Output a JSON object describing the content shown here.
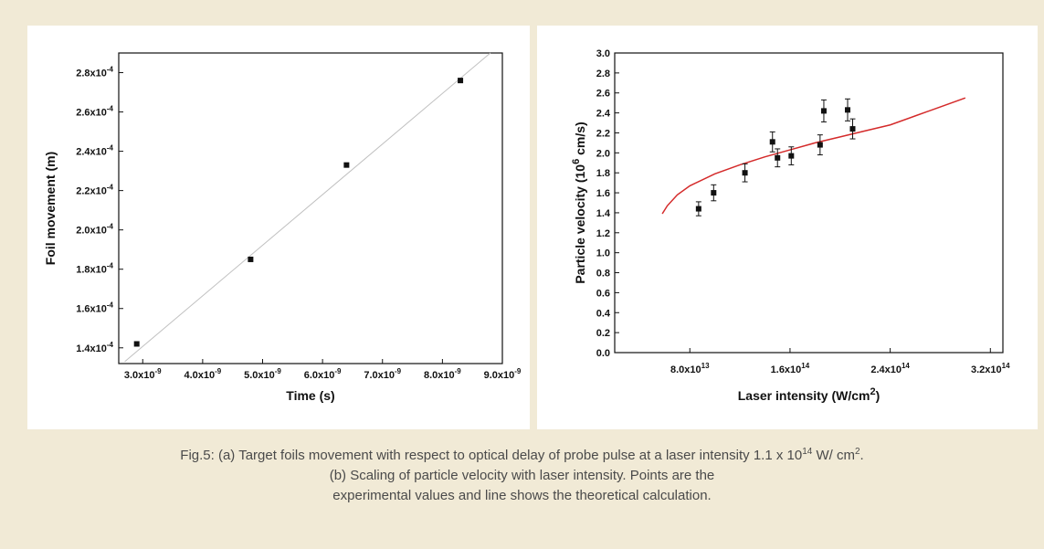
{
  "colors": {
    "background": "#f1ead6",
    "panel": "#ffffff",
    "fit_line": "#c0c0c0",
    "theory_line": "#d42a2a",
    "points": "#111111"
  },
  "chart_data": [
    {
      "type": "scatter",
      "xlabel": "Time (s)",
      "ylabel": "Foil movement (m)",
      "xlim": [
        2.6e-09,
        9e-09
      ],
      "ylim": [
        0.000132,
        0.00029
      ],
      "xticks": [
        3e-09,
        4e-09,
        5e-09,
        6e-09,
        7e-09,
        8e-09,
        9e-09
      ],
      "xtick_labels": [
        {
          "mant": "3.0x10",
          "exp": "-9"
        },
        {
          "mant": "4.0x10",
          "exp": "-9"
        },
        {
          "mant": "5.0x10",
          "exp": "-9"
        },
        {
          "mant": "6.0x10",
          "exp": "-9"
        },
        {
          "mant": "7.0x10",
          "exp": "-9"
        },
        {
          "mant": "8.0x10",
          "exp": "-9"
        },
        {
          "mant": "9.0x10",
          "exp": "-9"
        }
      ],
      "yticks": [
        0.00014,
        0.00016,
        0.00018,
        0.0002,
        0.00022,
        0.00024,
        0.00026,
        0.00028
      ],
      "ytick_labels": [
        {
          "mant": "1.4x10",
          "exp": "-4"
        },
        {
          "mant": "1.6x10",
          "exp": "-4"
        },
        {
          "mant": "1.8x10",
          "exp": "-4"
        },
        {
          "mant": "2.0x10",
          "exp": "-4"
        },
        {
          "mant": "2.2x10",
          "exp": "-4"
        },
        {
          "mant": "2.4x10",
          "exp": "-4"
        },
        {
          "mant": "2.6x10",
          "exp": "-4"
        },
        {
          "mant": "2.8x10",
          "exp": "-4"
        }
      ],
      "points": [
        {
          "x": 2.9e-09,
          "y": 0.000142
        },
        {
          "x": 4.8e-09,
          "y": 0.000185
        },
        {
          "x": 6.4e-09,
          "y": 0.000233
        },
        {
          "x": 8.3e-09,
          "y": 0.000276
        }
      ],
      "fit_line": [
        {
          "x": 2.7e-09,
          "y": 0.000133
        },
        {
          "x": 8.8e-09,
          "y": 0.00029
        }
      ],
      "grid": false
    },
    {
      "type": "scatter",
      "xlabel": {
        "main": "Laser intensity (W/cm",
        "sup": "2",
        "tail": ")"
      },
      "ylabel": {
        "main": "Particle velocity (10",
        "sup": "6",
        "tail": " cm/s)"
      },
      "xlim": [
        20000000000000.0,
        330000000000000.0
      ],
      "ylim": [
        0,
        3.0
      ],
      "xticks": [
        80000000000000.0,
        160000000000000.0,
        240000000000000.0,
        320000000000000.0
      ],
      "xtick_labels": [
        {
          "mant": "8.0x10",
          "exp": "13"
        },
        {
          "mant": "1.6x10",
          "exp": "14"
        },
        {
          "mant": "2.4x10",
          "exp": "14"
        },
        {
          "mant": "3.2x10",
          "exp": "14"
        }
      ],
      "yticks": [
        0,
        0.2,
        0.4,
        0.6,
        0.8,
        1.0,
        1.2,
        1.4,
        1.6,
        1.8,
        2.0,
        2.2,
        2.4,
        2.6,
        2.8,
        3.0
      ],
      "ytick_labels": [
        "0.0",
        "0.2",
        "0.4",
        "0.6",
        "0.8",
        "1.0",
        "1.2",
        "1.4",
        "1.6",
        "1.8",
        "2.0",
        "2.2",
        "2.4",
        "2.6",
        "2.8",
        "3.0"
      ],
      "points": [
        {
          "x": 87000000000000.0,
          "y": 1.44,
          "err": 0.07
        },
        {
          "x": 99000000000000.0,
          "y": 1.6,
          "err": 0.08
        },
        {
          "x": 124000000000000.0,
          "y": 1.8,
          "err": 0.09
        },
        {
          "x": 146000000000000.0,
          "y": 2.11,
          "err": 0.1
        },
        {
          "x": 150000000000000.0,
          "y": 1.95,
          "err": 0.09
        },
        {
          "x": 161000000000000.0,
          "y": 1.97,
          "err": 0.09
        },
        {
          "x": 184000000000000.0,
          "y": 2.08,
          "err": 0.1
        },
        {
          "x": 187000000000000.0,
          "y": 2.42,
          "err": 0.11
        },
        {
          "x": 206000000000000.0,
          "y": 2.43,
          "err": 0.11
        },
        {
          "x": 210000000000000.0,
          "y": 2.24,
          "err": 0.1
        }
      ],
      "theory_curve": {
        "x_start": 58000000000000.0,
        "x_end": 300000000000000.0,
        "values": [
          [
            58000000000000.0,
            1.39
          ],
          [
            62000000000000.0,
            1.47
          ],
          [
            70000000000000.0,
            1.58
          ],
          [
            80000000000000.0,
            1.67
          ],
          [
            100000000000000.0,
            1.79
          ],
          [
            120000000000000.0,
            1.88
          ],
          [
            140000000000000.0,
            1.96
          ],
          [
            160000000000000.0,
            2.03
          ],
          [
            180000000000000.0,
            2.1
          ],
          [
            200000000000000.0,
            2.16
          ],
          [
            220000000000000.0,
            2.22
          ],
          [
            240000000000000.0,
            2.28
          ],
          [
            260000000000000.0,
            2.37
          ],
          [
            280000000000000.0,
            2.46
          ],
          [
            300000000000000.0,
            2.55
          ]
        ]
      },
      "grid": false
    }
  ],
  "caption": {
    "line1_before": "Fig.5: (a) Target foils movement with respect to optical delay of probe pulse at a laser intensity 1.1 x 10",
    "line1_sup": "14",
    "line1_mid": " W/ cm",
    "line1_sup2": "2",
    "line1_end": ".",
    "line2": "(b) Scaling of particle velocity with laser intensity. Points are the",
    "line3": "experimental values and line shows the theoretical calculation."
  }
}
